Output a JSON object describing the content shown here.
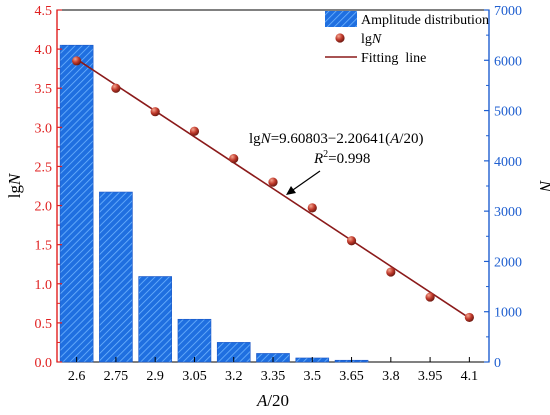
{
  "chart_data": {
    "type": "bar+scatter+line",
    "categories": [
      "2.6",
      "2.75",
      "2.9",
      "3.05",
      "3.2",
      "3.35",
      "3.5",
      "3.65",
      "3.8",
      "3.95",
      "4.1"
    ],
    "x_values": [
      2.6,
      2.75,
      2.9,
      3.05,
      3.2,
      3.35,
      3.5,
      3.65,
      3.8,
      3.95,
      4.1
    ],
    "xlabel_parts": [
      "A",
      "/20"
    ],
    "left_axis": {
      "label_parts": [
        "lg",
        "N"
      ],
      "ylim": [
        0,
        4.5
      ],
      "ticks": [
        0.0,
        0.5,
        1.0,
        1.5,
        2.0,
        2.5,
        3.0,
        3.5,
        4.0,
        4.5
      ],
      "tick_labels": [
        "0.0",
        "0.5",
        "1.0",
        "1.5",
        "2.0",
        "2.5",
        "3.0",
        "3.5",
        "4.0",
        "4.5"
      ]
    },
    "right_axis": {
      "label": "N",
      "ylim": [
        0,
        7000
      ],
      "ticks": [
        0,
        1000,
        2000,
        3000,
        4000,
        5000,
        6000,
        7000
      ],
      "tick_labels": [
        "0",
        "1000",
        "2000",
        "3000",
        "4000",
        "5000",
        "6000",
        "7000"
      ]
    },
    "series": [
      {
        "name": "Amplitude distribution",
        "type": "bar",
        "axis": "right",
        "color": "#1f6fe0",
        "values": [
          6300,
          3380,
          1700,
          850,
          390,
          170,
          80,
          35,
          0,
          0,
          0
        ]
      },
      {
        "name": "lgN",
        "type": "scatter",
        "axis": "left",
        "color": "#c0392b",
        "values": [
          3.85,
          3.5,
          3.2,
          2.95,
          2.6,
          2.3,
          1.97,
          1.55,
          1.15,
          0.83,
          0.57
        ]
      },
      {
        "name": "Fitting  line",
        "type": "line",
        "axis": "left",
        "color": "#8b1a1a",
        "slope": -2.20641,
        "intercept": 9.60803,
        "x_range": [
          2.6,
          4.1
        ]
      }
    ],
    "legend_position": "top-right",
    "annotation": {
      "equation_parts": [
        "lg",
        "N",
        "=9.60803−2.20641(",
        "A",
        "/20)"
      ],
      "r2_parts": [
        "R",
        "2",
        "=0.998"
      ]
    }
  }
}
